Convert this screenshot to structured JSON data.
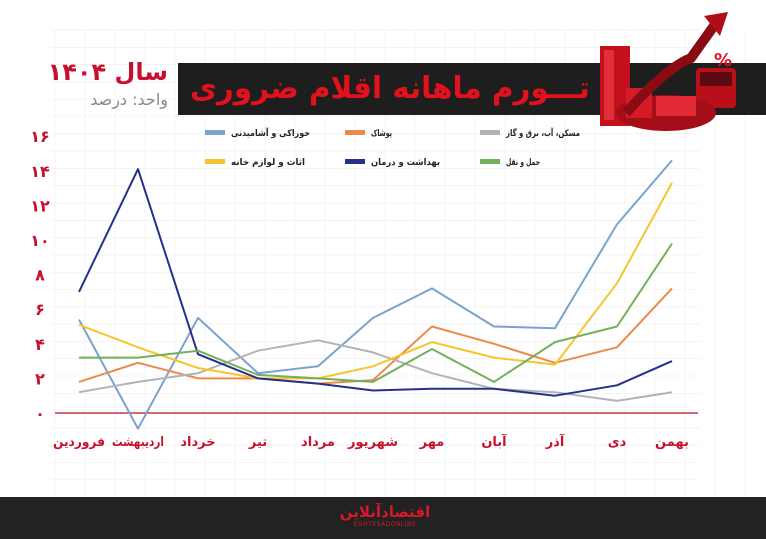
{
  "header": {
    "title": "تـــورم ماهانه اقلام ضروری",
    "year": "سال ۱۴۰۴",
    "unit": "واحد: درصد"
  },
  "footer": {
    "logo_text": "اقتصادآنلاین",
    "logo_subtext": "EGHTESADONLINE"
  },
  "colors": {
    "title": "#e3101e",
    "axis_labels": "#c8102e",
    "zero_line": "#c0394a",
    "header_bg": "#1e1e1e"
  },
  "chart_data": {
    "type": "line",
    "categories": [
      "فروردین",
      "اردیبهشت",
      "خرداد",
      "تیر",
      "مرداد",
      "شهریور",
      "مهر",
      "آبان",
      "آذر",
      "دی",
      "بهمن"
    ],
    "ylim": [
      -1,
      16
    ],
    "yticks": [
      0,
      2,
      4,
      6,
      8,
      10,
      12,
      14,
      16
    ],
    "ytick_labels": [
      "۰",
      "۲",
      "۴",
      "۶",
      "۸",
      "۱۰",
      "۱۲",
      "۱۴",
      "۱۶"
    ],
    "grid": true,
    "legend_position": "top",
    "series": [
      {
        "name": "خوراکی و آشامیدنی",
        "color": "#7ba3cf",
        "values": [
          5.4,
          -0.9,
          5.5,
          2.3,
          2.7,
          5.5,
          7.2,
          5.0,
          4.9,
          10.9,
          14.6
        ]
      },
      {
        "name": "پوشاک",
        "color": "#ec8a4b",
        "values": [
          1.8,
          2.9,
          2.0,
          2.0,
          1.7,
          1.9,
          5.0,
          4.0,
          2.9,
          3.8,
          7.2
        ]
      },
      {
        "name": "مسکن، آب، برق و گاز",
        "color": "#b3b3b3",
        "values": [
          1.2,
          1.8,
          2.3,
          3.6,
          4.2,
          3.5,
          2.3,
          1.4,
          1.2,
          0.7,
          1.2
        ]
      },
      {
        "name": "اثاث و لوازم خانه",
        "color": "#f7c52b",
        "values": [
          5.1,
          3.8,
          2.6,
          2.0,
          2.0,
          2.7,
          4.1,
          3.2,
          2.8,
          7.5,
          13.3
        ]
      },
      {
        "name": "بهداشت و درمان",
        "color": "#27308a",
        "values": [
          7.0,
          14.1,
          3.4,
          2.0,
          1.7,
          1.3,
          1.4,
          1.4,
          1.0,
          1.6,
          3.0
        ]
      },
      {
        "name": "حمل و نقل",
        "color": "#74b05c",
        "values": [
          3.2,
          3.2,
          3.6,
          2.2,
          2.0,
          1.8,
          3.7,
          1.8,
          4.1,
          5.0,
          9.8
        ]
      }
    ]
  }
}
